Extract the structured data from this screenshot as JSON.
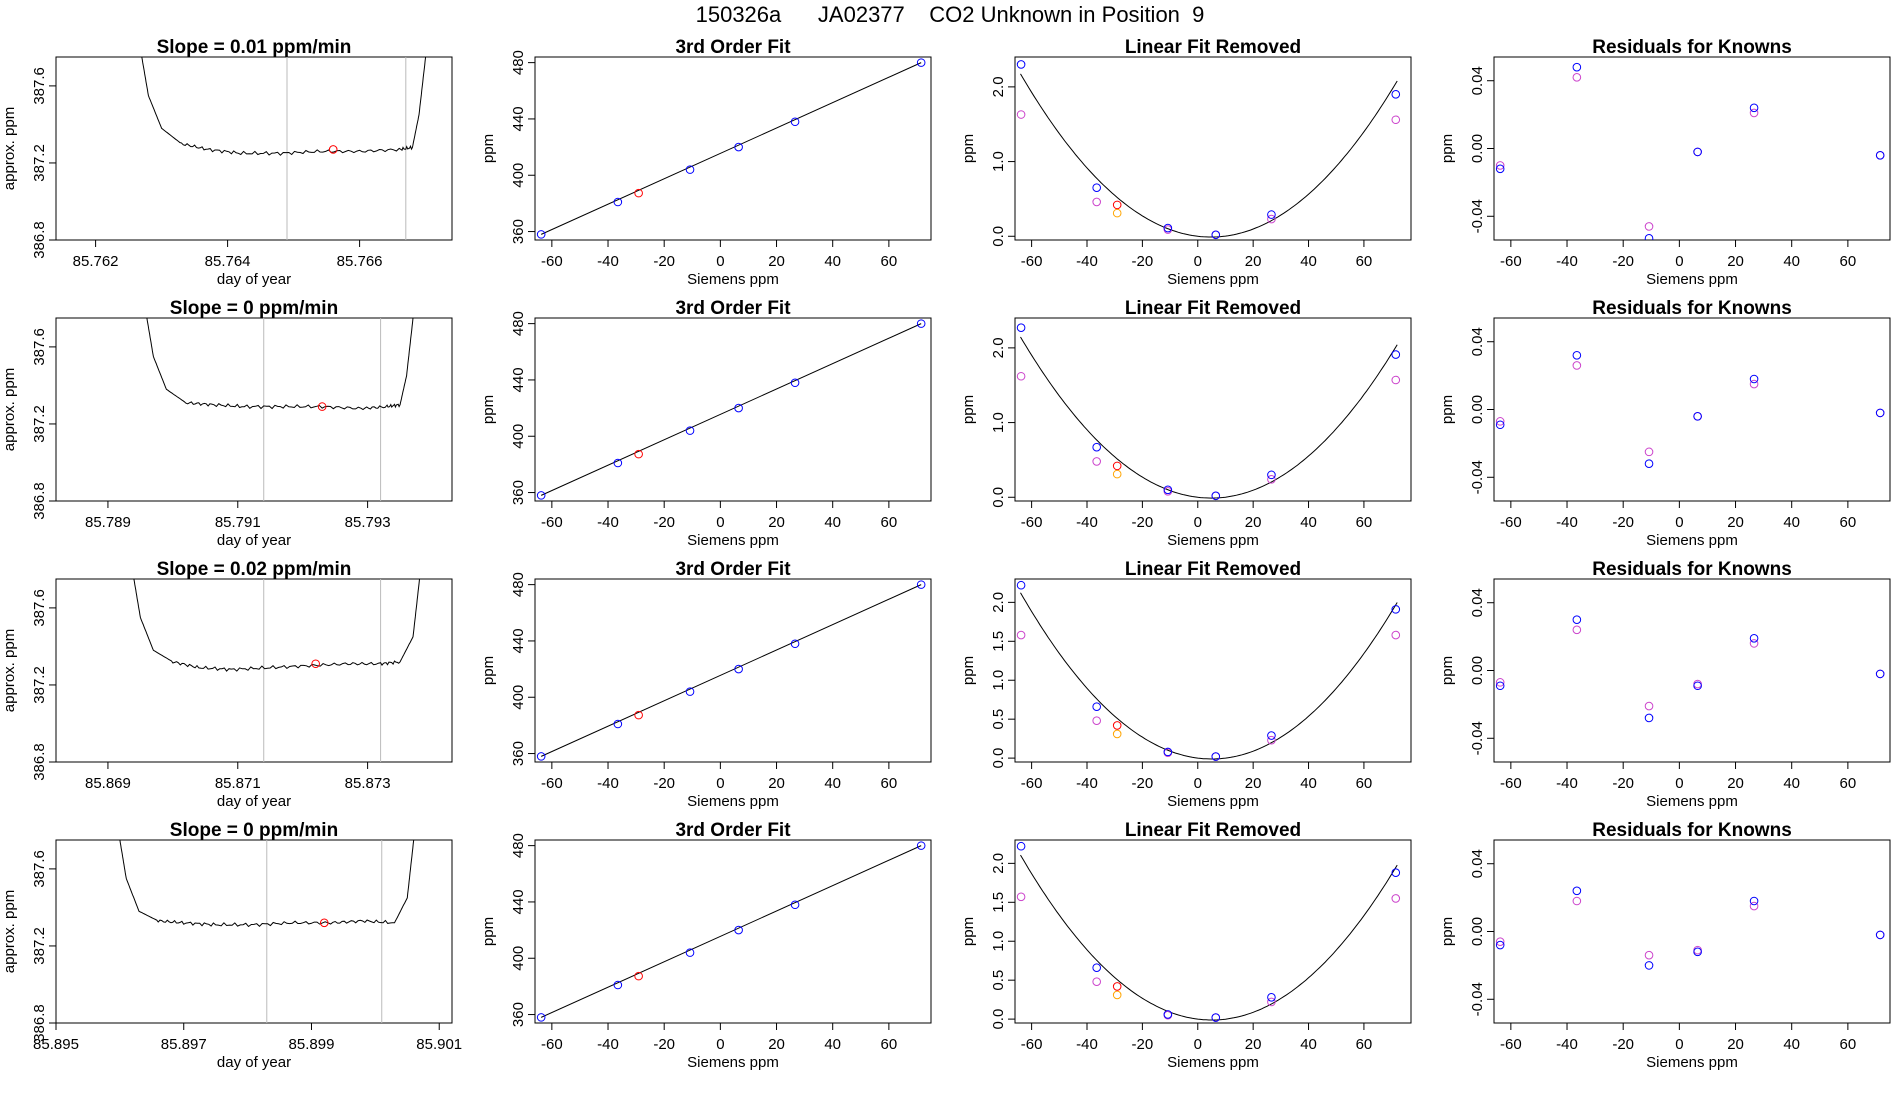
{
  "page": {
    "title": "150326a      JA02377    CO2 Unknown in Position  9"
  },
  "colors": {
    "known": "#0000ff",
    "unknown": "#ff0000",
    "residual_alt": "#cc44cc",
    "fit_alt": "#ffa500",
    "line": "#000000",
    "vline": "#bbbbbb"
  },
  "chart_data": [
    {
      "type": "line",
      "title": "Slope =  0.01  ppm/min",
      "xlabel": "day of year",
      "ylabel": "approx. ppm",
      "xlim": [
        85.7614,
        85.7674
      ],
      "ylim": [
        386.8,
        387.75
      ],
      "xticks": [
        "85.762",
        "85.764",
        "85.766"
      ],
      "yticks": [
        "386.8",
        "387.2",
        "387.6"
      ],
      "trace": {
        "x": [
          85.7627,
          85.7628,
          85.763,
          85.7633,
          85.7637,
          85.7642,
          85.7648,
          85.7654,
          85.766,
          85.7666,
          85.7668,
          85.7669,
          85.767
        ],
        "y": [
          387.75,
          387.55,
          387.38,
          387.3,
          387.27,
          387.25,
          387.25,
          387.26,
          387.26,
          387.27,
          387.28,
          387.45,
          387.75
        ]
      },
      "vlines": [
        85.7649,
        85.7667
      ],
      "marker": {
        "x": 85.7656,
        "y": 387.27
      }
    },
    {
      "type": "line",
      "title": "Slope =  0  ppm/min",
      "xlabel": "day of year",
      "ylabel": "approx. ppm",
      "xlim": [
        85.7882,
        85.7943
      ],
      "ylim": [
        386.8,
        387.75
      ],
      "xticks": [
        "85.789",
        "85.791",
        "85.793"
      ],
      "yticks": [
        "386.8",
        "387.2",
        "387.6"
      ],
      "trace": {
        "x": [
          85.7896,
          85.7897,
          85.7899,
          85.7902,
          85.7906,
          85.7911,
          85.7917,
          85.7923,
          85.7929,
          85.7933,
          85.7935,
          85.7936,
          85.7937
        ],
        "y": [
          387.75,
          387.55,
          387.38,
          387.31,
          387.3,
          387.29,
          387.29,
          387.29,
          387.28,
          387.29,
          387.3,
          387.45,
          387.75
        ]
      },
      "vlines": [
        85.7914,
        85.7932
      ],
      "marker": {
        "x": 85.7923,
        "y": 387.29
      }
    },
    {
      "type": "line",
      "title": "Slope =  0.02  ppm/min",
      "xlabel": "day of year",
      "ylabel": "approx. ppm",
      "xlim": [
        85.8682,
        85.8743
      ],
      "ylim": [
        386.8,
        387.75
      ],
      "xticks": [
        "85.869",
        "85.871",
        "85.873"
      ],
      "yticks": [
        "386.8",
        "387.2",
        "387.6"
      ],
      "trace": {
        "x": [
          85.8694,
          85.8695,
          85.8697,
          85.87,
          85.8704,
          85.8709,
          85.8715,
          85.8721,
          85.8727,
          85.8732,
          85.8735,
          85.8737,
          85.8738
        ],
        "y": [
          387.75,
          387.55,
          387.38,
          387.32,
          387.29,
          387.28,
          387.29,
          387.3,
          387.31,
          387.31,
          387.32,
          387.45,
          387.75
        ]
      },
      "vlines": [
        85.8714,
        85.8732
      ],
      "marker": {
        "x": 85.8722,
        "y": 387.31
      }
    },
    {
      "type": "line",
      "title": "Slope =  0  ppm/min",
      "xlabel": "day of year",
      "ylabel": "approx. ppm",
      "xlim": [
        85.895,
        85.9012
      ],
      "ylim": [
        386.8,
        387.75
      ],
      "xticks": [
        "85.895",
        "85.897",
        "85.899",
        "85.901"
      ],
      "yticks": [
        "386.8",
        "387.2",
        "387.6"
      ],
      "trace": {
        "x": [
          85.896,
          85.8961,
          85.8963,
          85.8966,
          85.897,
          85.8975,
          85.8981,
          85.8987,
          85.8993,
          85.8998,
          85.9003,
          85.9005,
          85.9006
        ],
        "y": [
          387.75,
          387.55,
          387.38,
          387.33,
          387.32,
          387.31,
          387.31,
          387.32,
          387.32,
          387.33,
          387.32,
          387.45,
          387.75
        ]
      },
      "vlines": [
        85.8983,
        85.9001
      ],
      "marker": {
        "x": 85.8992,
        "y": 387.32
      }
    },
    {
      "type": "scatter",
      "title": "3rd Order Fit",
      "xlabel": "Siemens ppm",
      "ylabel": "ppm",
      "xlim": [
        -66,
        75
      ],
      "ylim": [
        354,
        484
      ],
      "xticks": [
        "-60",
        "-40",
        "-20",
        "0",
        "20",
        "40",
        "60"
      ],
      "yticks": [
        "360",
        "400",
        "440",
        "480"
      ],
      "fit_line": [
        [
          -63.8,
          358.0
        ],
        [
          71.5,
          480.0
        ]
      ],
      "known": {
        "x": [
          -63.8,
          -36.5,
          -10.8,
          6.5,
          26.6,
          71.5
        ],
        "y": [
          358.0,
          381.0,
          404.0,
          420.0,
          438.0,
          480.0
        ]
      },
      "unknown": {
        "x": [
          -29.1
        ],
        "y": [
          387.3
        ]
      }
    },
    {
      "type": "scatter",
      "title": "3rd Order Fit",
      "xlabel": "Siemens ppm",
      "ylabel": "ppm",
      "xlim": [
        -66,
        75
      ],
      "ylim": [
        354,
        484
      ],
      "xticks": [
        "-60",
        "-40",
        "-20",
        "0",
        "20",
        "40",
        "60"
      ],
      "yticks": [
        "360",
        "400",
        "440",
        "480"
      ],
      "fit_line": [
        [
          -63.8,
          358.0
        ],
        [
          71.5,
          480.0
        ]
      ],
      "known": {
        "x": [
          -63.8,
          -36.5,
          -10.8,
          6.5,
          26.6,
          71.5
        ],
        "y": [
          358.0,
          381.0,
          404.0,
          420.0,
          438.0,
          480.0
        ]
      },
      "unknown": {
        "x": [
          -29.1
        ],
        "y": [
          387.3
        ]
      }
    },
    {
      "type": "scatter",
      "title": "3rd Order Fit",
      "xlabel": "Siemens ppm",
      "ylabel": "ppm",
      "xlim": [
        -66,
        75
      ],
      "ylim": [
        354,
        484
      ],
      "xticks": [
        "-60",
        "-40",
        "-20",
        "0",
        "20",
        "40",
        "60"
      ],
      "yticks": [
        "360",
        "400",
        "440",
        "480"
      ],
      "fit_line": [
        [
          -63.8,
          358.0
        ],
        [
          71.5,
          480.0
        ]
      ],
      "known": {
        "x": [
          -63.8,
          -36.5,
          -10.8,
          6.5,
          26.6,
          71.5
        ],
        "y": [
          358.0,
          381.0,
          404.0,
          420.0,
          438.0,
          480.0
        ]
      },
      "unknown": {
        "x": [
          -29.1
        ],
        "y": [
          387.3
        ]
      }
    },
    {
      "type": "scatter",
      "title": "3rd Order Fit",
      "xlabel": "Siemens ppm",
      "ylabel": "ppm",
      "xlim": [
        -66,
        75
      ],
      "ylim": [
        354,
        484
      ],
      "xticks": [
        "-60",
        "-40",
        "-20",
        "0",
        "20",
        "40",
        "60"
      ],
      "yticks": [
        "360",
        "400",
        "440",
        "480"
      ],
      "fit_line": [
        [
          -63.8,
          358.0
        ],
        [
          71.5,
          480.0
        ]
      ],
      "known": {
        "x": [
          -63.8,
          -36.5,
          -10.8,
          6.5,
          26.6,
          71.5
        ],
        "y": [
          358.0,
          381.0,
          404.0,
          420.0,
          438.0,
          480.0
        ]
      },
      "unknown": {
        "x": [
          -29.1
        ],
        "y": [
          387.3
        ]
      }
    },
    {
      "type": "scatter",
      "title": "Linear Fit Removed",
      "xlabel": "Siemens ppm",
      "ylabel": "ppm",
      "xlim": [
        -66,
        77
      ],
      "ylim": [
        -0.05,
        2.4
      ],
      "xticks": [
        "-60",
        "-40",
        "-20",
        "0",
        "20",
        "40",
        "60"
      ],
      "yticks": [
        "0.0",
        "1.0",
        "2.0"
      ],
      "curve": {
        "a": 0.000462,
        "b": -0.0044,
        "c": 0.0
      },
      "known": {
        "x": [
          -63.8,
          -36.5,
          -10.8,
          6.5,
          26.6,
          71.5
        ],
        "y": [
          2.3,
          0.65,
          0.11,
          0.02,
          0.29,
          1.9
        ]
      },
      "alt": {
        "x": [
          -63.8,
          -36.5,
          -10.8,
          6.5,
          26.6,
          71.5
        ],
        "y": [
          1.63,
          0.46,
          0.09,
          0.02,
          0.23,
          1.56
        ]
      },
      "unknown": {
        "x": [
          -29.1
        ],
        "y": [
          0.42
        ]
      },
      "unknown_alt": {
        "x": [
          -29.1
        ],
        "y": [
          0.31
        ]
      }
    },
    {
      "type": "scatter",
      "title": "Linear Fit Removed",
      "xlabel": "Siemens ppm",
      "ylabel": "ppm",
      "xlim": [
        -66,
        77
      ],
      "ylim": [
        -0.05,
        2.4
      ],
      "xticks": [
        "-60",
        "-40",
        "-20",
        "0",
        "20",
        "40",
        "60"
      ],
      "yticks": [
        "0.0",
        "1.0",
        "2.0"
      ],
      "curve": {
        "a": 0.000455,
        "b": -0.0044,
        "c": 0.0
      },
      "known": {
        "x": [
          -63.8,
          -36.5,
          -10.8,
          6.5,
          26.6,
          71.5
        ],
        "y": [
          2.27,
          0.67,
          0.1,
          0.02,
          0.3,
          1.91
        ]
      },
      "alt": {
        "x": [
          -63.8,
          -36.5,
          -10.8,
          6.5,
          26.6,
          71.5
        ],
        "y": [
          1.62,
          0.48,
          0.08,
          0.02,
          0.24,
          1.57
        ]
      },
      "unknown": {
        "x": [
          -29.1
        ],
        "y": [
          0.42
        ]
      },
      "unknown_alt": {
        "x": [
          -29.1
        ],
        "y": [
          0.31
        ]
      }
    },
    {
      "type": "scatter",
      "title": "Linear Fit Removed",
      "xlabel": "Siemens ppm",
      "ylabel": "ppm",
      "xlim": [
        -66,
        77
      ],
      "ylim": [
        -0.05,
        2.3
      ],
      "xticks": [
        "-60",
        "-40",
        "-20",
        "0",
        "20",
        "40",
        "60"
      ],
      "yticks": [
        "0.0",
        "0.5",
        "1.0",
        "1.5",
        "2.0"
      ],
      "curve": {
        "a": 0.000448,
        "b": -0.0045,
        "c": 0.0
      },
      "known": {
        "x": [
          -63.8,
          -36.5,
          -10.8,
          6.5,
          26.6,
          71.5
        ],
        "y": [
          2.22,
          0.66,
          0.08,
          0.02,
          0.29,
          1.91
        ]
      },
      "alt": {
        "x": [
          -63.8,
          -36.5,
          -10.8,
          6.5,
          26.6,
          71.5
        ],
        "y": [
          1.58,
          0.48,
          0.07,
          0.02,
          0.23,
          1.58
        ]
      },
      "unknown": {
        "x": [
          -29.1
        ],
        "y": [
          0.42
        ]
      },
      "unknown_alt": {
        "x": [
          -29.1
        ],
        "y": [
          0.31
        ]
      }
    },
    {
      "type": "scatter",
      "title": "Linear Fit Removed",
      "xlabel": "Siemens ppm",
      "ylabel": "ppm",
      "xlim": [
        -66,
        77
      ],
      "ylim": [
        -0.05,
        2.3
      ],
      "xticks": [
        "-60",
        "-40",
        "-20",
        "0",
        "20",
        "40",
        "60"
      ],
      "yticks": [
        "0.0",
        "0.5",
        "1.0",
        "1.5",
        "2.0"
      ],
      "curve": {
        "a": 0.000444,
        "b": -0.0045,
        "c": 0.0
      },
      "known": {
        "x": [
          -63.8,
          -36.5,
          -10.8,
          6.5,
          26.6,
          71.5
        ],
        "y": [
          2.22,
          0.66,
          0.06,
          0.02,
          0.28,
          1.88
        ]
      },
      "alt": {
        "x": [
          -63.8,
          -36.5,
          -10.8,
          6.5,
          26.6,
          71.5
        ],
        "y": [
          1.57,
          0.48,
          0.05,
          0.02,
          0.22,
          1.55
        ]
      },
      "unknown": {
        "x": [
          -29.1
        ],
        "y": [
          0.42
        ]
      },
      "unknown_alt": {
        "x": [
          -29.1
        ],
        "y": [
          0.31
        ]
      }
    },
    {
      "type": "scatter",
      "title": "Residuals for Knowns",
      "xlabel": "Siemens ppm",
      "ylabel": "ppm",
      "xlim": [
        -66,
        75
      ],
      "ylim": [
        -0.054,
        0.054
      ],
      "xticks": [
        "-60",
        "-40",
        "-20",
        "0",
        "20",
        "40",
        "60"
      ],
      "yticks": [
        "-0.04",
        "0.00",
        "0.04"
      ],
      "known": {
        "x": [
          -63.8,
          -36.5,
          -10.8,
          6.5,
          26.6,
          71.5
        ],
        "y": [
          -0.012,
          0.048,
          -0.053,
          -0.002,
          0.024,
          -0.004
        ]
      },
      "alt": {
        "x": [
          -63.8,
          -36.5,
          -10.8,
          6.5,
          26.6,
          71.5
        ],
        "y": [
          -0.01,
          0.042,
          -0.046,
          -0.002,
          0.021,
          -0.004
        ]
      }
    },
    {
      "type": "scatter",
      "title": "Residuals for Knowns",
      "xlabel": "Siemens ppm",
      "ylabel": "ppm",
      "xlim": [
        -66,
        75
      ],
      "ylim": [
        -0.054,
        0.054
      ],
      "xticks": [
        "-60",
        "-40",
        "-20",
        "0",
        "20",
        "40",
        "60"
      ],
      "yticks": [
        "-0.04",
        "0.00",
        "0.04"
      ],
      "known": {
        "x": [
          -63.8,
          -36.5,
          -10.8,
          6.5,
          26.6,
          71.5
        ],
        "y": [
          -0.009,
          0.032,
          -0.032,
          -0.004,
          0.018,
          -0.002
        ]
      },
      "alt": {
        "x": [
          -63.8,
          -36.5,
          -10.8,
          6.5,
          26.6,
          71.5
        ],
        "y": [
          -0.007,
          0.026,
          -0.025,
          -0.004,
          0.015,
          -0.002
        ]
      }
    },
    {
      "type": "scatter",
      "title": "Residuals for Knowns",
      "xlabel": "Siemens ppm",
      "ylabel": "ppm",
      "xlim": [
        -66,
        75
      ],
      "ylim": [
        -0.054,
        0.054
      ],
      "xticks": [
        "-60",
        "-40",
        "-20",
        "0",
        "20",
        "40",
        "60"
      ],
      "yticks": [
        "-0.04",
        "0.00",
        "0.04"
      ],
      "known": {
        "x": [
          -63.8,
          -36.5,
          -10.8,
          6.5,
          26.6,
          71.5
        ],
        "y": [
          -0.009,
          0.03,
          -0.028,
          -0.009,
          0.019,
          -0.002
        ]
      },
      "alt": {
        "x": [
          -63.8,
          -36.5,
          -10.8,
          6.5,
          26.6,
          71.5
        ],
        "y": [
          -0.007,
          0.024,
          -0.021,
          -0.008,
          0.016,
          -0.002
        ]
      }
    },
    {
      "type": "scatter",
      "title": "Residuals for Knowns",
      "xlabel": "Siemens ppm",
      "ylabel": "ppm",
      "xlim": [
        -66,
        75
      ],
      "ylim": [
        -0.054,
        0.054
      ],
      "xticks": [
        "-60",
        "-40",
        "-20",
        "0",
        "20",
        "40",
        "60"
      ],
      "yticks": [
        "-0.04",
        "0.00",
        "0.04"
      ],
      "known": {
        "x": [
          -63.8,
          -36.5,
          -10.8,
          6.5,
          26.6,
          71.5
        ],
        "y": [
          -0.008,
          0.024,
          -0.02,
          -0.012,
          0.018,
          -0.002
        ]
      },
      "alt": {
        "x": [
          -63.8,
          -36.5,
          -10.8,
          6.5,
          26.6,
          71.5
        ],
        "y": [
          -0.006,
          0.018,
          -0.014,
          -0.011,
          0.015,
          -0.002
        ]
      }
    }
  ]
}
